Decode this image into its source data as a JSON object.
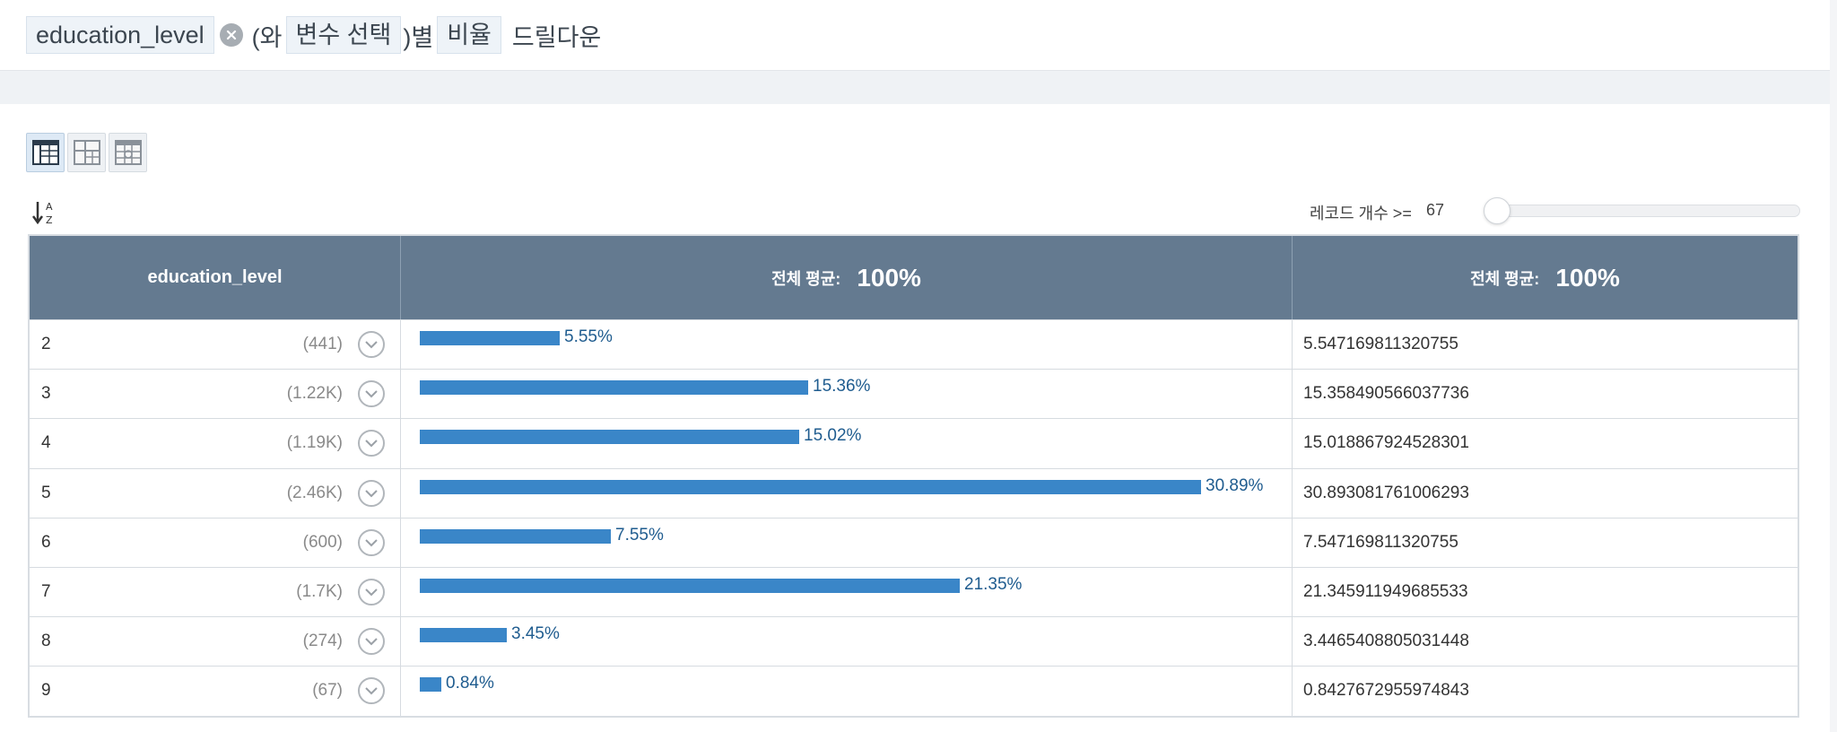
{
  "header": {
    "chip_variable": "education_level",
    "text_with": "(와",
    "chip_select": "변수 선택",
    "text_by": ")별",
    "chip_ratio": "비율",
    "suffix": "드릴다운"
  },
  "icons": {
    "clear": "close-circle-icon",
    "view_table": "table-view-icon",
    "view_pivot": "pivot-view-icon",
    "view_grid": "grid-view-icon",
    "sort": "sort-az-icon",
    "drill": "chevron-down-circle-icon"
  },
  "filter": {
    "label": "레코드 개수 >=",
    "value": "67",
    "slider_fraction": 0
  },
  "table": {
    "col1_header": "education_level",
    "col2_header_label": "전체 평균:",
    "col2_header_value": "100%",
    "col3_header_label": "전체 평균:",
    "col3_header_value": "100%",
    "bar_color": "#3a86c8",
    "bar_scale_max": 33,
    "rows": [
      {
        "category": "2",
        "count": "(441)",
        "pct": 5.55,
        "pct_label": "5.55%",
        "value": "5.547169811320755"
      },
      {
        "category": "3",
        "count": "(1.22K)",
        "pct": 15.36,
        "pct_label": "15.36%",
        "value": "15.358490566037736"
      },
      {
        "category": "4",
        "count": "(1.19K)",
        "pct": 15.02,
        "pct_label": "15.02%",
        "value": "15.018867924528301"
      },
      {
        "category": "5",
        "count": "(2.46K)",
        "pct": 30.89,
        "pct_label": "30.89%",
        "value": "30.893081761006293"
      },
      {
        "category": "6",
        "count": "(600)",
        "pct": 7.55,
        "pct_label": "7.55%",
        "value": "7.547169811320755"
      },
      {
        "category": "7",
        "count": "(1.7K)",
        "pct": 21.35,
        "pct_label": "21.35%",
        "value": "21.345911949685533"
      },
      {
        "category": "8",
        "count": "(274)",
        "pct": 3.45,
        "pct_label": "3.45%",
        "value": "3.4465408805031448"
      },
      {
        "category": "9",
        "count": "(67)",
        "pct": 0.84,
        "pct_label": "0.84%",
        "value": "0.8427672955974843"
      }
    ]
  }
}
